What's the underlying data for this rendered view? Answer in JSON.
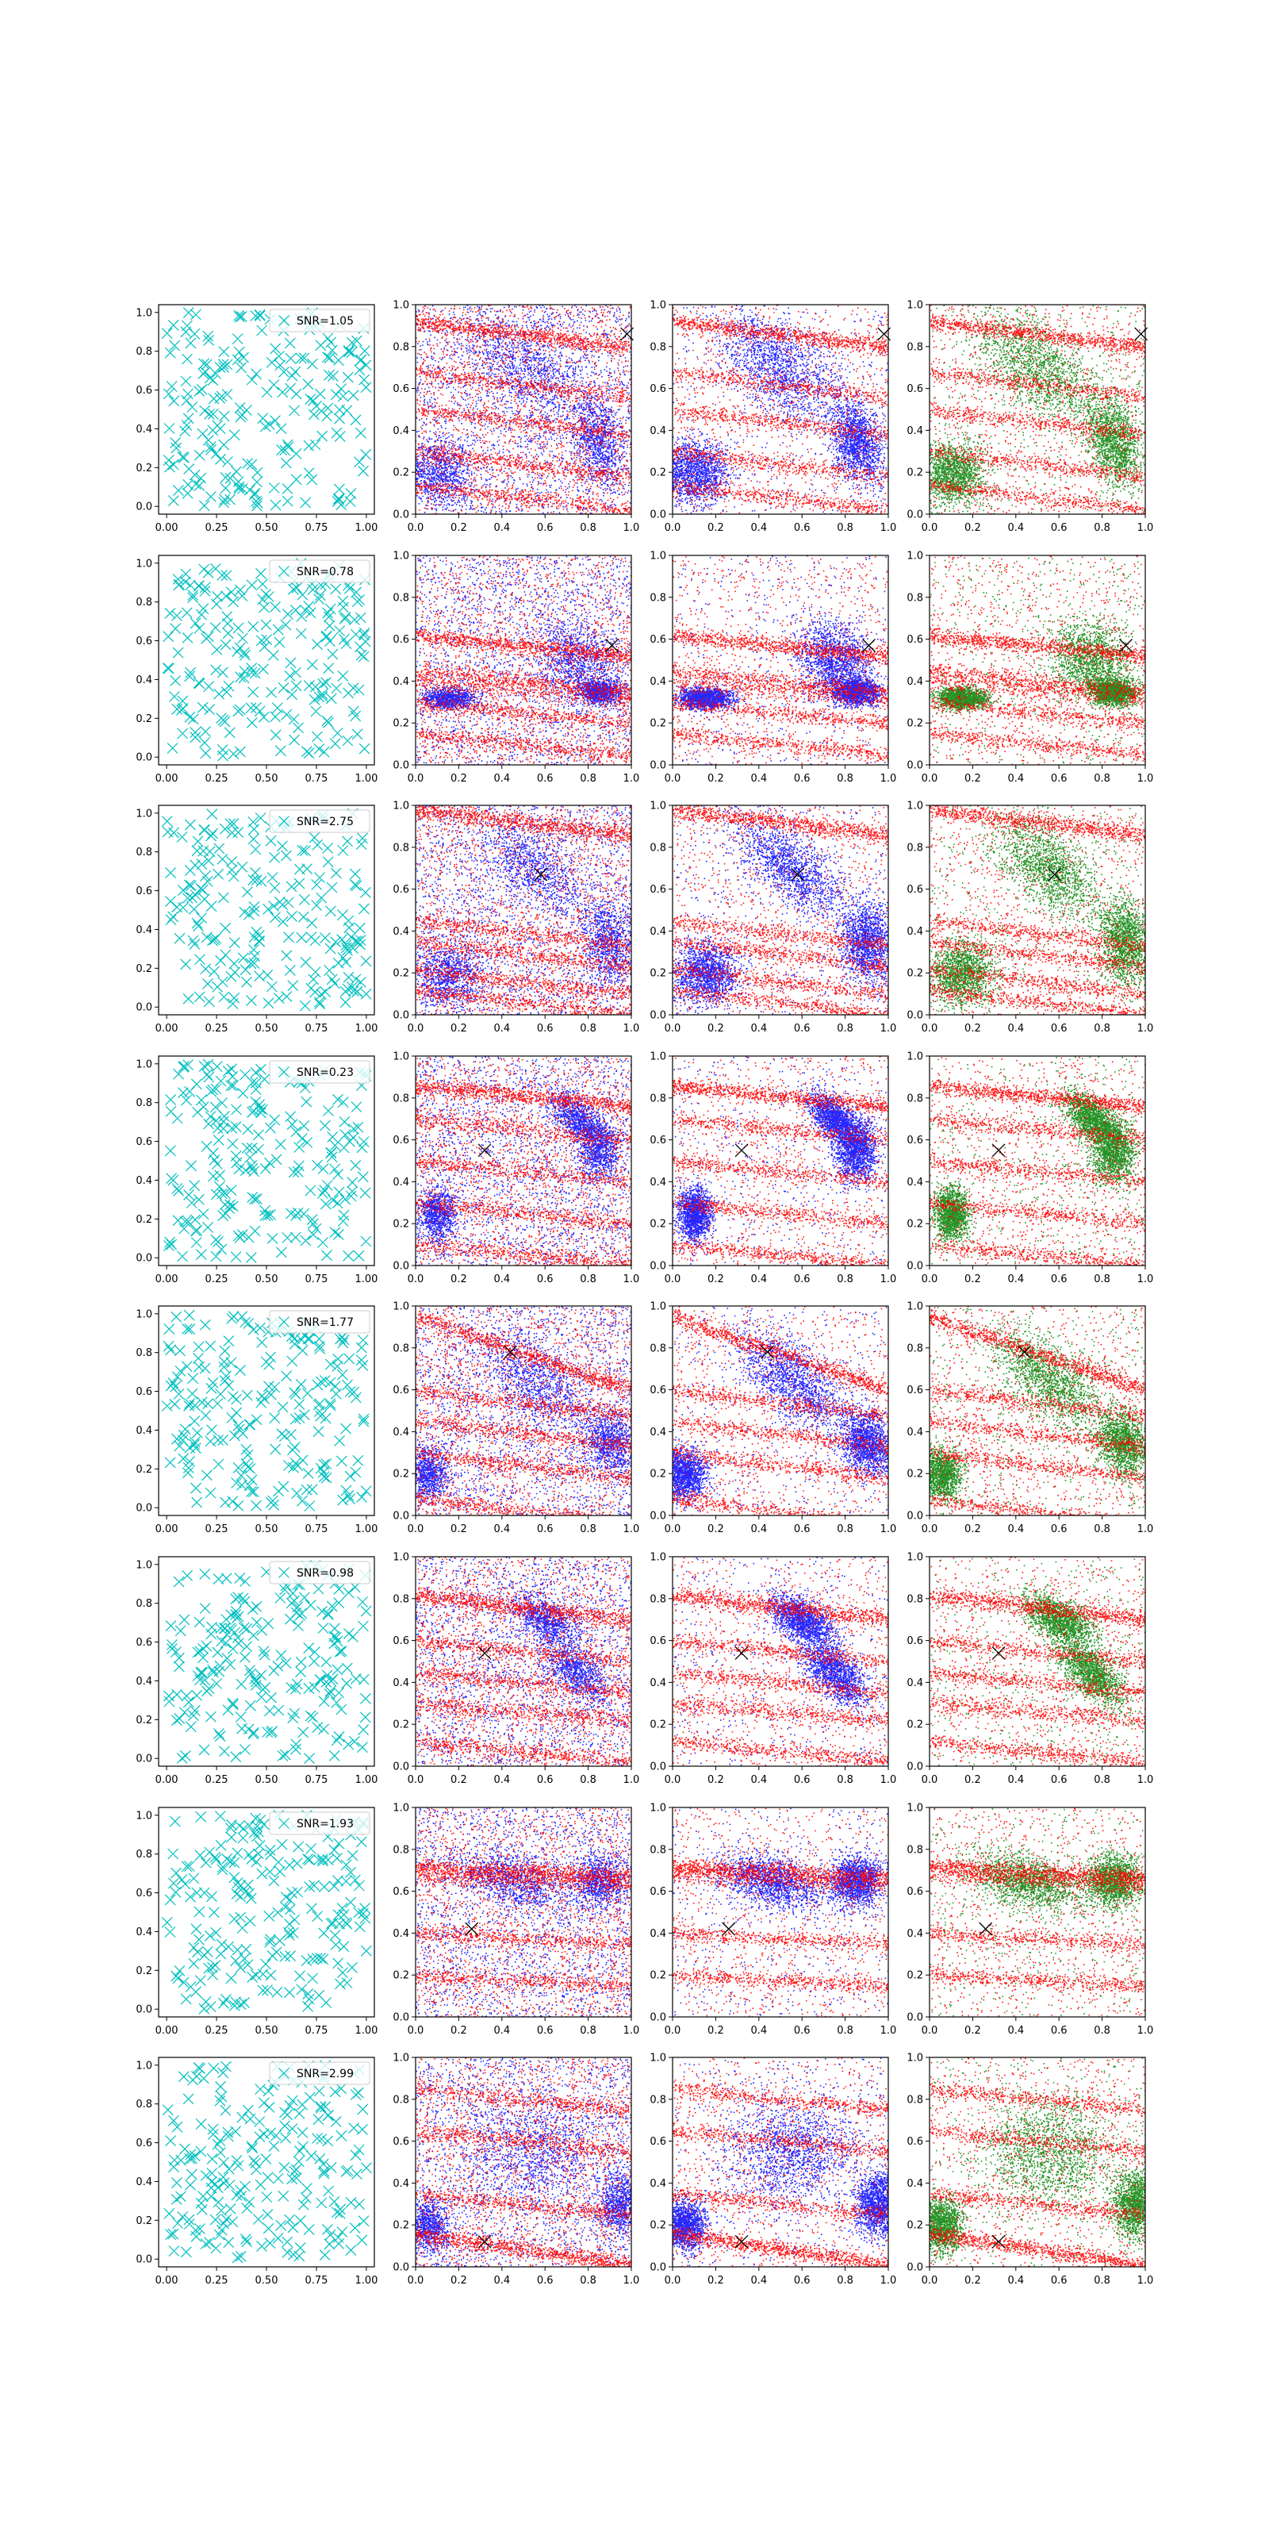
{
  "chart_data": {
    "type": "scatter",
    "grid": false,
    "layout": "8 rows x 4 columns of scatter panels",
    "colors": {
      "candidate_marker": "#00bfbf",
      "background_points": "#ff0000",
      "signal_points_mixed": "#0000ff",
      "signal_points_separated": "#008000",
      "true_location_marker": "#000000"
    },
    "columns": [
      {
        "kind": "candidate locations",
        "marker": "x",
        "color": "#00bfbf",
        "legend_loc": "upper right"
      },
      {
        "kind": "mixed events",
        "colors": [
          "#0000ff",
          "#ff0000"
        ]
      },
      {
        "kind": "separated events",
        "colors": [
          "#0000ff",
          "#ff0000"
        ]
      },
      {
        "kind": "separated events",
        "colors": [
          "#008000",
          "#ff0000"
        ]
      }
    ],
    "axes": {
      "col0": {
        "xlim": [
          -0.04,
          1.04
        ],
        "ylim": [
          -0.04,
          1.04
        ],
        "xticks": [
          "0.00",
          "0.25",
          "0.50",
          "0.75",
          "1.00"
        ],
        "yticks": [
          "0.0",
          "0.2",
          "0.4",
          "0.6",
          "0.8",
          "1.0"
        ]
      },
      "cols1to3": {
        "xlim": [
          0,
          1
        ],
        "ylim": [
          0,
          1
        ],
        "xticks": [
          "0.0",
          "0.2",
          "0.4",
          "0.6",
          "0.8",
          "1.0"
        ],
        "yticks": [
          "0.0",
          "0.2",
          "0.4",
          "0.6",
          "0.8",
          "1.0"
        ]
      }
    },
    "rows": [
      {
        "snr_label": "SNR=1.05",
        "true_location": [
          0.98,
          0.86
        ],
        "seed": 11,
        "red_bands": [
          [
            0.92,
            -0.12,
            0.018
          ],
          [
            0.68,
            -0.12,
            0.018
          ],
          [
            0.5,
            -0.12,
            0.018
          ],
          [
            0.3,
            -0.12,
            0.018
          ],
          [
            0.14,
            -0.12,
            0.018
          ]
        ],
        "blue_blobs": [
          [
            0.5,
            0.7,
            0.28,
            0.22,
            0.5
          ],
          [
            0.85,
            0.35,
            0.12,
            0.2,
            0.6
          ],
          [
            0.1,
            0.2,
            0.15,
            0.15,
            0
          ]
        ]
      },
      {
        "snr_label": "SNR=0.78",
        "true_location": [
          0.91,
          0.57
        ],
        "seed": 23,
        "red_bands": [
          [
            0.62,
            -0.1,
            0.018
          ],
          [
            0.45,
            -0.1,
            0.02
          ],
          [
            0.4,
            -0.08,
            0.025
          ],
          [
            0.3,
            -0.1,
            0.018
          ],
          [
            0.15,
            -0.1,
            0.018
          ]
        ],
        "blue_blobs": [
          [
            0.75,
            0.5,
            0.18,
            0.18,
            0.2
          ],
          [
            0.15,
            0.32,
            0.12,
            0.05,
            0
          ],
          [
            0.85,
            0.35,
            0.1,
            0.06,
            0
          ]
        ]
      },
      {
        "snr_label": "SNR=2.75",
        "true_location": [
          0.58,
          0.67
        ],
        "seed": 37,
        "red_bands": [
          [
            0.98,
            -0.12,
            0.02
          ],
          [
            0.45,
            -0.12,
            0.018
          ],
          [
            0.35,
            -0.12,
            0.018
          ],
          [
            0.22,
            -0.12,
            0.018
          ],
          [
            0.12,
            -0.12,
            0.018
          ]
        ],
        "blue_blobs": [
          [
            0.55,
            0.7,
            0.25,
            0.18,
            0.6
          ],
          [
            0.9,
            0.35,
            0.12,
            0.2,
            0.2
          ],
          [
            0.15,
            0.2,
            0.15,
            0.15,
            0
          ]
        ]
      },
      {
        "snr_label": "SNR=0.23",
        "true_location": [
          0.32,
          0.55
        ],
        "seed": 41,
        "red_bands": [
          [
            0.86,
            -0.1,
            0.018
          ],
          [
            0.7,
            -0.1,
            0.02
          ],
          [
            0.5,
            -0.1,
            0.018
          ],
          [
            0.3,
            -0.1,
            0.018
          ],
          [
            0.1,
            -0.1,
            0.018
          ]
        ],
        "blue_blobs": [
          [
            0.75,
            0.7,
            0.12,
            0.1,
            0.6
          ],
          [
            0.85,
            0.55,
            0.1,
            0.15,
            0
          ],
          [
            0.1,
            0.25,
            0.08,
            0.12,
            0
          ]
        ]
      },
      {
        "snr_label": "SNR=1.77",
        "true_location": [
          0.44,
          0.78
        ],
        "seed": 53,
        "red_bands": [
          [
            0.95,
            -0.35,
            0.02
          ],
          [
            0.6,
            -0.12,
            0.018
          ],
          [
            0.45,
            -0.12,
            0.018
          ],
          [
            0.3,
            -0.12,
            0.018
          ],
          [
            0.08,
            -0.12,
            0.018
          ]
        ],
        "blue_blobs": [
          [
            0.55,
            0.65,
            0.25,
            0.18,
            0.6
          ],
          [
            0.9,
            0.35,
            0.12,
            0.15,
            0.2
          ],
          [
            0.05,
            0.2,
            0.1,
            0.12,
            0
          ]
        ]
      },
      {
        "snr_label": "SNR=0.98",
        "true_location": [
          0.32,
          0.54
        ],
        "seed": 67,
        "red_bands": [
          [
            0.82,
            -0.12,
            0.02
          ],
          [
            0.6,
            -0.1,
            0.018
          ],
          [
            0.45,
            -0.1,
            0.018
          ],
          [
            0.3,
            -0.08,
            0.02
          ],
          [
            0.12,
            -0.1,
            0.018
          ]
        ],
        "blue_blobs": [
          [
            0.75,
            0.45,
            0.15,
            0.12,
            0.6
          ],
          [
            0.6,
            0.7,
            0.15,
            0.1,
            0.4
          ]
        ]
      },
      {
        "snr_label": "SNR=1.93",
        "true_location": [
          0.26,
          0.42
        ],
        "seed": 79,
        "red_bands": [
          [
            0.72,
            -0.05,
            0.02
          ],
          [
            0.68,
            -0.05,
            0.02
          ],
          [
            0.4,
            -0.05,
            0.018
          ],
          [
            0.2,
            -0.05,
            0.018
          ]
        ],
        "blue_blobs": [
          [
            0.45,
            0.65,
            0.25,
            0.12,
            0.2
          ],
          [
            0.85,
            0.65,
            0.12,
            0.12,
            0
          ]
        ]
      },
      {
        "snr_label": "SNR=2.99",
        "true_location": [
          0.32,
          0.12
        ],
        "seed": 97,
        "red_bands": [
          [
            0.16,
            -0.15,
            0.018
          ],
          [
            0.85,
            -0.1,
            0.018
          ],
          [
            0.65,
            -0.1,
            0.018
          ],
          [
            0.35,
            -0.1,
            0.018
          ]
        ],
        "blue_blobs": [
          [
            0.05,
            0.2,
            0.1,
            0.12,
            0
          ],
          [
            0.95,
            0.3,
            0.1,
            0.15,
            0
          ],
          [
            0.55,
            0.55,
            0.3,
            0.25,
            0
          ]
        ]
      }
    ]
  }
}
